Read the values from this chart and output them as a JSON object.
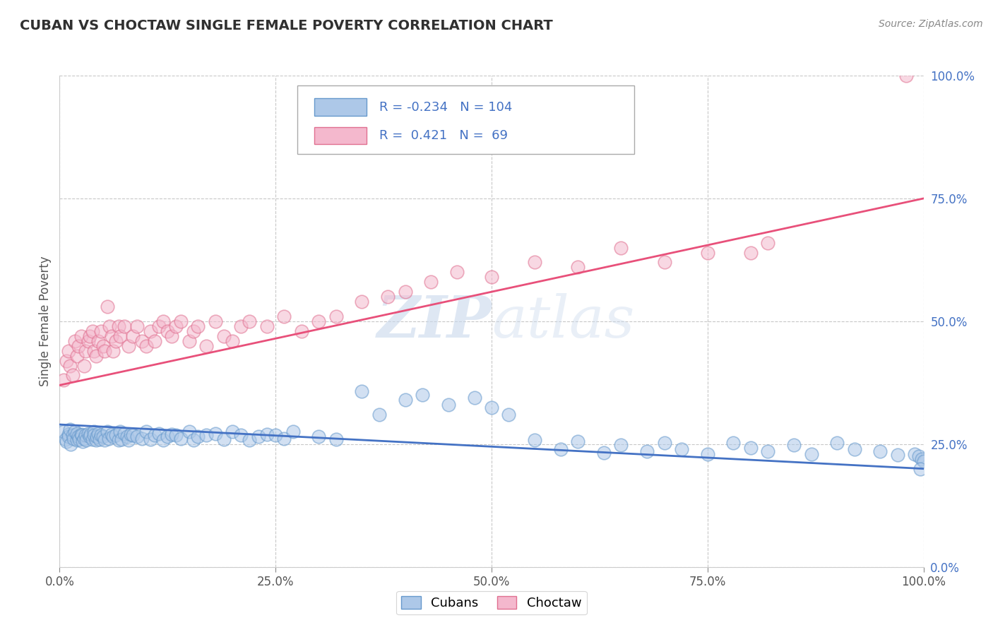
{
  "title": "CUBAN VS CHOCTAW SINGLE FEMALE POVERTY CORRELATION CHART",
  "source": "Source: ZipAtlas.com",
  "ylabel": "Single Female Poverty",
  "xlim": [
    0.0,
    1.0
  ],
  "ylim": [
    0.0,
    1.0
  ],
  "xticks": [
    0.0,
    0.25,
    0.5,
    0.75,
    1.0
  ],
  "yticks": [
    0.0,
    0.25,
    0.5,
    0.75,
    1.0
  ],
  "xticklabels": [
    "0.0%",
    "25.0%",
    "50.0%",
    "75.0%",
    "100.0%"
  ],
  "yticklabels": [
    "0.0%",
    "25.0%",
    "50.0%",
    "75.0%",
    "100.0%"
  ],
  "cuban_color": "#adc8e8",
  "choctaw_color": "#f4b8cd",
  "cuban_edge_color": "#6699cc",
  "choctaw_edge_color": "#e07090",
  "cuban_line_color": "#4472c4",
  "choctaw_line_color": "#e8507a",
  "R_cuban": -0.234,
  "N_cuban": 104,
  "R_choctaw": 0.421,
  "N_choctaw": 69,
  "watermark": "ZIPatlas",
  "background_color": "#ffffff",
  "grid_color": "#c8c8c8",
  "title_color": "#404040",
  "legend_text_color": "#4472c4",
  "cuban_scatter_x": [
    0.005,
    0.007,
    0.008,
    0.01,
    0.01,
    0.012,
    0.013,
    0.015,
    0.016,
    0.018,
    0.02,
    0.02,
    0.022,
    0.023,
    0.025,
    0.026,
    0.027,
    0.028,
    0.03,
    0.031,
    0.033,
    0.035,
    0.036,
    0.038,
    0.04,
    0.04,
    0.042,
    0.043,
    0.045,
    0.046,
    0.048,
    0.05,
    0.052,
    0.055,
    0.057,
    0.06,
    0.062,
    0.065,
    0.068,
    0.07,
    0.072,
    0.075,
    0.078,
    0.08,
    0.082,
    0.085,
    0.09,
    0.095,
    0.1,
    0.105,
    0.11,
    0.115,
    0.12,
    0.125,
    0.13,
    0.135,
    0.14,
    0.15,
    0.155,
    0.16,
    0.17,
    0.18,
    0.19,
    0.2,
    0.21,
    0.22,
    0.23,
    0.24,
    0.25,
    0.26,
    0.27,
    0.3,
    0.32,
    0.35,
    0.37,
    0.4,
    0.42,
    0.45,
    0.48,
    0.5,
    0.52,
    0.55,
    0.58,
    0.6,
    0.63,
    0.65,
    0.68,
    0.7,
    0.72,
    0.75,
    0.78,
    0.8,
    0.82,
    0.85,
    0.87,
    0.9,
    0.92,
    0.95,
    0.97,
    0.99,
    0.995,
    0.998,
    1.0,
    0.996
  ],
  "cuban_scatter_y": [
    0.275,
    0.26,
    0.255,
    0.27,
    0.265,
    0.28,
    0.25,
    0.268,
    0.262,
    0.275,
    0.258,
    0.272,
    0.265,
    0.26,
    0.27,
    0.268,
    0.255,
    0.262,
    0.268,
    0.258,
    0.272,
    0.265,
    0.27,
    0.26,
    0.275,
    0.268,
    0.258,
    0.265,
    0.272,
    0.26,
    0.268,
    0.265,
    0.258,
    0.275,
    0.262,
    0.27,
    0.265,
    0.268,
    0.258,
    0.275,
    0.26,
    0.272,
    0.265,
    0.258,
    0.27,
    0.268,
    0.265,
    0.262,
    0.275,
    0.26,
    0.268,
    0.272,
    0.258,
    0.265,
    0.27,
    0.268,
    0.262,
    0.275,
    0.258,
    0.265,
    0.268,
    0.272,
    0.26,
    0.275,
    0.268,
    0.258,
    0.265,
    0.27,
    0.268,
    0.262,
    0.275,
    0.265,
    0.26,
    0.358,
    0.31,
    0.34,
    0.35,
    0.33,
    0.345,
    0.325,
    0.31,
    0.258,
    0.24,
    0.255,
    0.232,
    0.248,
    0.235,
    0.252,
    0.24,
    0.23,
    0.252,
    0.242,
    0.235,
    0.248,
    0.23,
    0.252,
    0.24,
    0.235,
    0.228,
    0.23,
    0.225,
    0.22,
    0.215,
    0.2
  ],
  "choctaw_scatter_x": [
    0.005,
    0.008,
    0.01,
    0.012,
    0.015,
    0.018,
    0.02,
    0.022,
    0.025,
    0.028,
    0.03,
    0.033,
    0.035,
    0.038,
    0.04,
    0.042,
    0.045,
    0.048,
    0.05,
    0.052,
    0.055,
    0.058,
    0.06,
    0.062,
    0.065,
    0.068,
    0.07,
    0.075,
    0.08,
    0.085,
    0.09,
    0.095,
    0.1,
    0.105,
    0.11,
    0.115,
    0.12,
    0.125,
    0.13,
    0.135,
    0.14,
    0.15,
    0.155,
    0.16,
    0.17,
    0.18,
    0.19,
    0.2,
    0.21,
    0.22,
    0.24,
    0.26,
    0.28,
    0.3,
    0.32,
    0.35,
    0.38,
    0.4,
    0.43,
    0.46,
    0.5,
    0.55,
    0.6,
    0.65,
    0.7,
    0.75,
    0.8,
    0.82,
    0.98
  ],
  "choctaw_scatter_y": [
    0.38,
    0.42,
    0.44,
    0.41,
    0.39,
    0.46,
    0.43,
    0.45,
    0.47,
    0.41,
    0.44,
    0.46,
    0.47,
    0.48,
    0.44,
    0.43,
    0.46,
    0.48,
    0.45,
    0.44,
    0.53,
    0.49,
    0.47,
    0.44,
    0.46,
    0.49,
    0.47,
    0.49,
    0.45,
    0.47,
    0.49,
    0.46,
    0.45,
    0.48,
    0.46,
    0.49,
    0.5,
    0.48,
    0.47,
    0.49,
    0.5,
    0.46,
    0.48,
    0.49,
    0.45,
    0.5,
    0.47,
    0.46,
    0.49,
    0.5,
    0.49,
    0.51,
    0.48,
    0.5,
    0.51,
    0.54,
    0.55,
    0.56,
    0.58,
    0.6,
    0.59,
    0.62,
    0.61,
    0.65,
    0.62,
    0.64,
    0.64,
    0.66,
    1.0
  ]
}
